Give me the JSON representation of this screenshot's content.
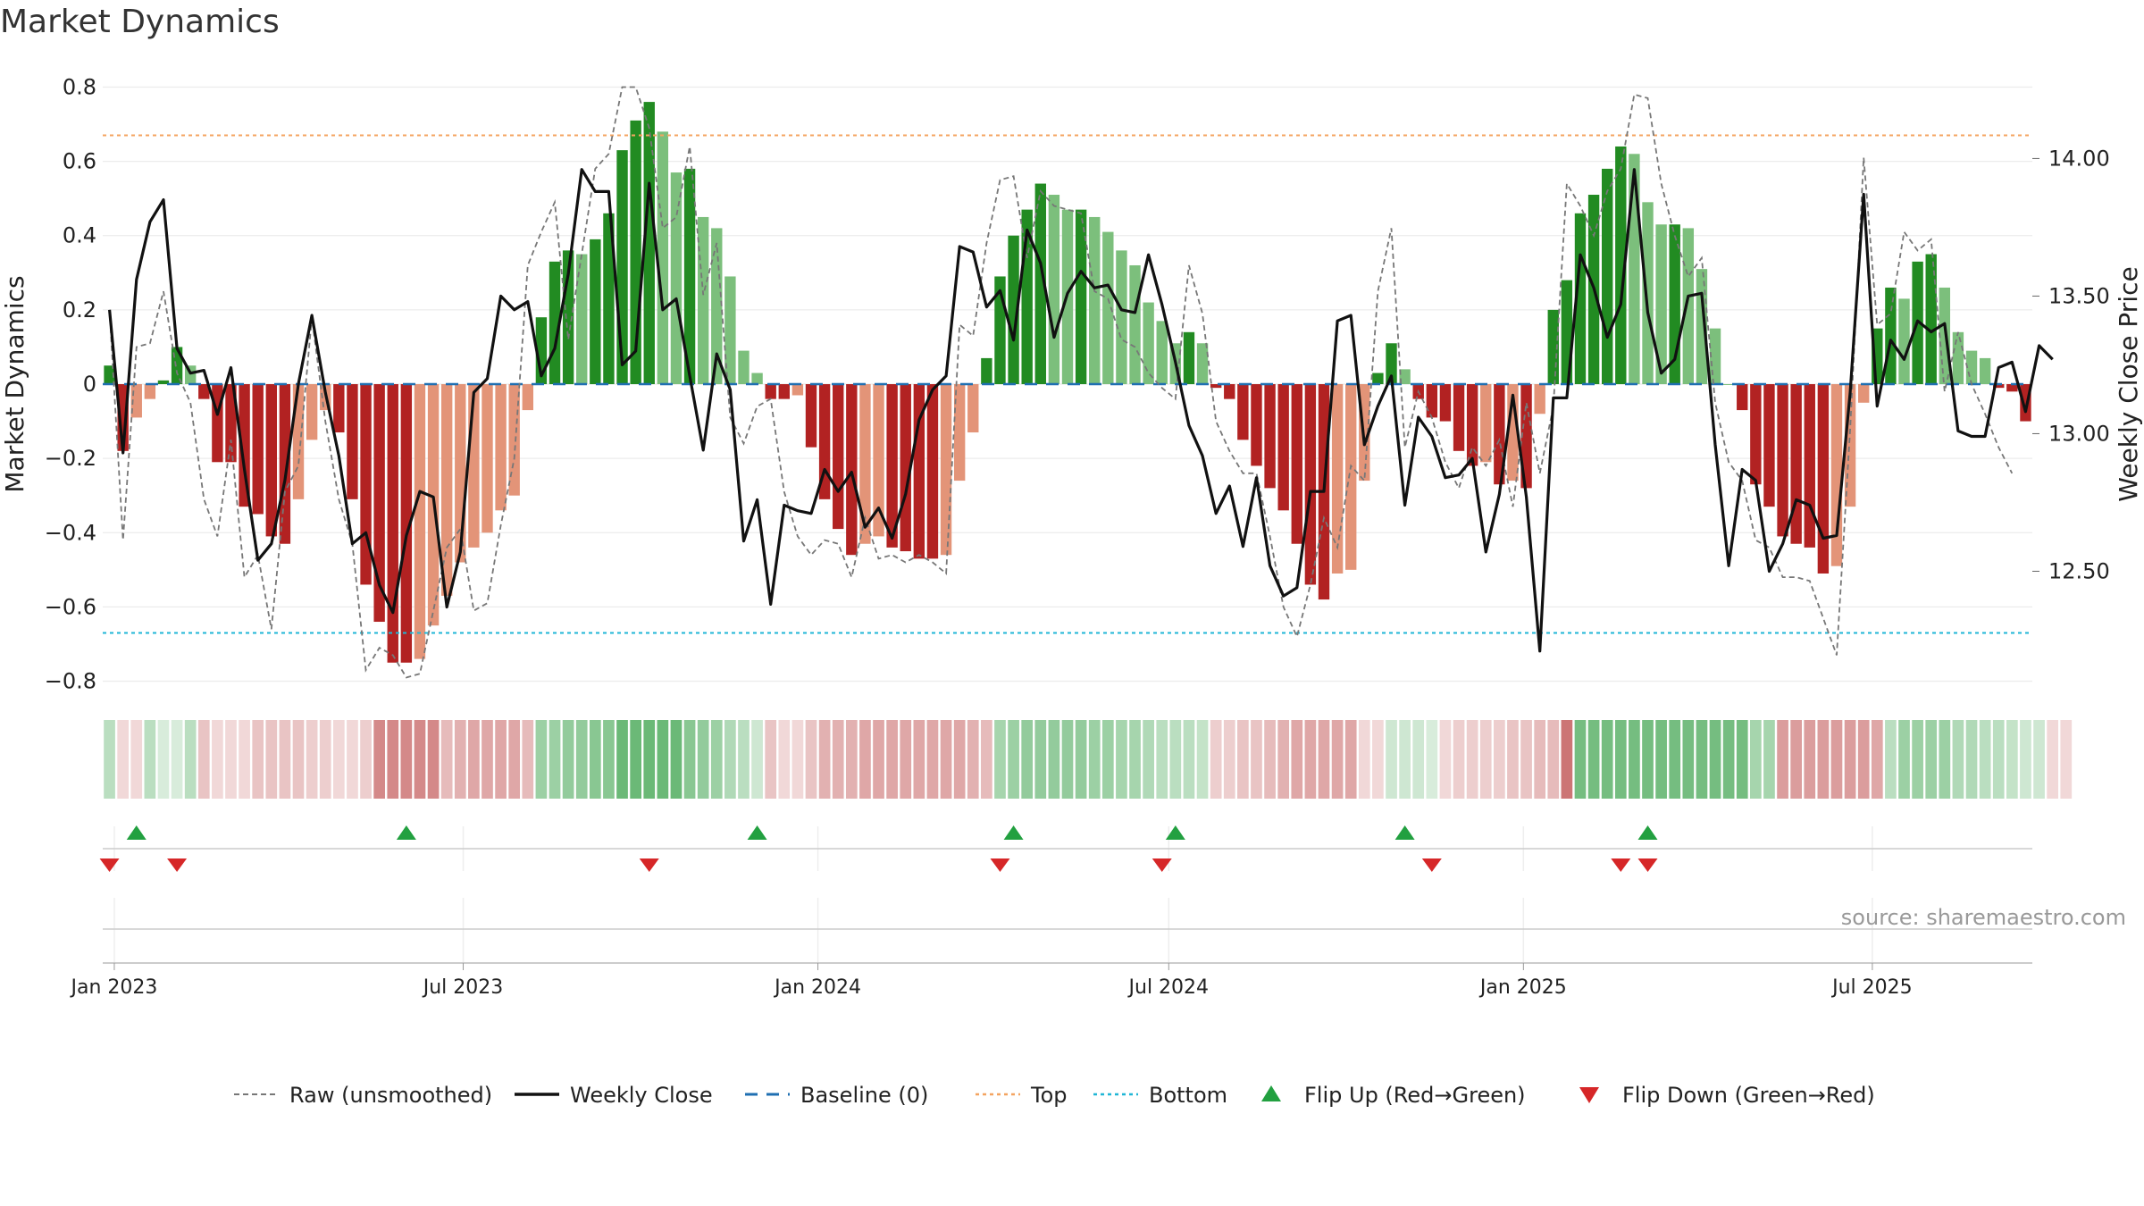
{
  "title": "Market Dynamics",
  "source": "source: sharemaestro.com",
  "chart_data": {
    "type": "bar",
    "ylabel": "Market Dynamics",
    "ylabel_right": "Weekly Close Price",
    "ylim": [
      -0.83,
      0.83
    ],
    "ylim_right": [
      12.06,
      14.3
    ],
    "yticks": [
      "0.8",
      "0.6",
      "0.4",
      "0.2",
      "0",
      "−0.2",
      "−0.4",
      "−0.6",
      "−0.8"
    ],
    "yticks_right": [
      "14.00",
      "13.50",
      "13.00",
      "12.50"
    ],
    "xticks": [
      "Jan 2023",
      "Jul 2023",
      "Jan 2024",
      "Jul 2024",
      "Jan 2025",
      "Jul 2025"
    ],
    "start_date": "2022-12-26",
    "top_level": 0.67,
    "bottom_level": -0.67,
    "bars": [
      0.05,
      -0.18,
      -0.09,
      -0.04,
      0.01,
      0.1,
      0.05,
      -0.04,
      -0.21,
      -0.21,
      -0.33,
      -0.35,
      -0.41,
      -0.43,
      -0.31,
      -0.15,
      -0.07,
      -0.13,
      -0.31,
      -0.54,
      -0.64,
      -0.75,
      -0.75,
      -0.74,
      -0.65,
      -0.57,
      -0.48,
      -0.44,
      -0.4,
      -0.34,
      -0.3,
      -0.07,
      0.18,
      0.33,
      0.36,
      0.35,
      0.39,
      0.46,
      0.63,
      0.71,
      0.76,
      0.68,
      0.57,
      0.58,
      0.45,
      0.42,
      0.29,
      0.09,
      0.03,
      -0.04,
      -0.04,
      -0.03,
      -0.17,
      -0.31,
      -0.39,
      -0.46,
      -0.43,
      -0.41,
      -0.44,
      -0.45,
      -0.47,
      -0.47,
      -0.46,
      -0.26,
      -0.13,
      0.07,
      0.29,
      0.4,
      0.47,
      0.54,
      0.51,
      0.47,
      0.47,
      0.45,
      0.41,
      0.36,
      0.32,
      0.22,
      0.17,
      0.11,
      0.14,
      0.11,
      -0.01,
      -0.04,
      -0.15,
      -0.22,
      -0.28,
      -0.34,
      -0.43,
      -0.54,
      -0.58,
      -0.51,
      -0.5,
      -0.26,
      0.03,
      0.11,
      0.04,
      -0.04,
      -0.09,
      -0.1,
      -0.18,
      -0.22,
      -0.21,
      -0.27,
      -0.26,
      -0.28,
      -0.08,
      0.2,
      0.28,
      0.46,
      0.51,
      0.58,
      0.64,
      0.62,
      0.49,
      0.43,
      0.43,
      0.42,
      0.31,
      0.15,
      0.0,
      -0.07,
      -0.27,
      -0.33,
      -0.41,
      -0.43,
      -0.44,
      -0.51,
      -0.49,
      -0.33,
      -0.05,
      0.15,
      0.26,
      0.23,
      0.33,
      0.35,
      0.26,
      0.14,
      0.09,
      0.07,
      -0.01,
      -0.02,
      -0.1
    ],
    "raw": [
      0.2,
      -0.42,
      0.1,
      0.11,
      0.25,
      0.03,
      -0.05,
      -0.31,
      -0.41,
      -0.15,
      -0.52,
      -0.46,
      -0.66,
      -0.29,
      -0.22,
      0.18,
      -0.1,
      -0.31,
      -0.43,
      -0.77,
      -0.71,
      -0.73,
      -0.79,
      -0.78,
      -0.61,
      -0.44,
      -0.39,
      -0.61,
      -0.59,
      -0.38,
      -0.2,
      0.32,
      0.41,
      0.49,
      0.12,
      0.35,
      0.58,
      0.62,
      0.8,
      0.8,
      0.69,
      0.42,
      0.45,
      0.64,
      0.24,
      0.38,
      -0.09,
      -0.16,
      -0.06,
      -0.04,
      -0.29,
      -0.41,
      -0.46,
      -0.42,
      -0.43,
      -0.52,
      -0.36,
      -0.47,
      -0.46,
      -0.48,
      -0.46,
      -0.48,
      -0.51,
      0.16,
      0.13,
      0.38,
      0.55,
      0.56,
      0.34,
      0.52,
      0.48,
      0.47,
      0.46,
      0.25,
      0.23,
      0.12,
      0.1,
      0.03,
      -0.01,
      -0.04,
      0.32,
      0.19,
      -0.1,
      -0.18,
      -0.24,
      -0.24,
      -0.41,
      -0.6,
      -0.68,
      -0.54,
      -0.36,
      -0.44,
      -0.22,
      -0.26,
      0.25,
      0.42,
      -0.17,
      -0.02,
      -0.09,
      -0.21,
      -0.28,
      -0.17,
      -0.22,
      -0.15,
      -0.33,
      -0.05,
      -0.24,
      -0.06,
      0.54,
      0.48,
      0.4,
      0.52,
      0.58,
      0.78,
      0.77,
      0.54,
      0.4,
      0.29,
      0.34,
      -0.05,
      -0.21,
      -0.26,
      -0.42,
      -0.44,
      -0.52,
      -0.52,
      -0.53,
      -0.63,
      -0.73,
      -0.12,
      0.61,
      0.16,
      0.19,
      0.41,
      0.36,
      0.39,
      -0.02,
      0.14,
      0.0,
      -0.08,
      -0.17,
      -0.24
    ],
    "price": [
      13.45,
      12.93,
      13.56,
      13.77,
      13.85,
      13.31,
      13.22,
      13.23,
      13.07,
      13.24,
      12.87,
      12.54,
      12.6,
      12.83,
      13.18,
      13.43,
      13.15,
      12.92,
      12.6,
      12.64,
      12.45,
      12.35,
      12.63,
      12.79,
      12.77,
      12.37,
      12.57,
      13.15,
      13.2,
      13.5,
      13.45,
      13.48,
      13.21,
      13.31,
      13.58,
      13.96,
      13.88,
      13.88,
      13.25,
      13.3,
      13.91,
      13.45,
      13.49,
      13.21,
      12.94,
      13.29,
      13.16,
      12.61,
      12.76,
      12.38,
      12.74,
      12.72,
      12.71,
      12.87,
      12.79,
      12.86,
      12.66,
      12.73,
      12.62,
      12.78,
      13.05,
      13.16,
      13.21,
      13.68,
      13.66,
      13.46,
      13.52,
      13.34,
      13.74,
      13.62,
      13.35,
      13.51,
      13.59,
      13.53,
      13.54,
      13.45,
      13.44,
      13.65,
      13.47,
      13.26,
      13.03,
      12.92,
      12.71,
      12.81,
      12.59,
      12.84,
      12.52,
      12.41,
      12.44,
      12.79,
      12.79,
      13.41,
      13.43,
      12.96,
      13.1,
      13.21,
      12.74,
      13.06,
      12.99,
      12.84,
      12.85,
      12.91,
      12.57,
      12.78,
      13.14,
      12.77,
      12.21,
      13.13,
      13.13,
      13.65,
      13.53,
      13.35,
      13.47,
      13.96,
      13.44,
      13.22,
      13.27,
      13.5,
      13.51,
      12.96,
      12.52,
      12.87,
      12.83,
      12.5,
      12.6,
      12.76,
      12.74,
      12.62,
      12.63,
      13.15,
      13.87,
      13.1,
      13.34,
      13.27,
      13.41,
      13.37,
      13.4,
      13.01,
      12.99,
      12.99,
      13.24,
      13.26,
      13.08,
      13.32,
      13.27
    ],
    "flip_up_weeks": [
      2,
      22,
      48,
      67,
      79,
      96,
      114
    ],
    "flip_down_weeks": [
      0,
      5,
      40,
      66,
      78,
      98,
      112,
      114
    ],
    "strip_levels": [
      0.35,
      0.2,
      0.2,
      0.35,
      0.2,
      0.2,
      0.35,
      0.3,
      0.2,
      0.2,
      0.2,
      0.3,
      0.3,
      0.3,
      0.3,
      0.25,
      0.25,
      0.2,
      0.2,
      0.25,
      0.6,
      0.6,
      0.6,
      0.6,
      0.6,
      0.35,
      0.4,
      0.45,
      0.45,
      0.45,
      0.45,
      0.35,
      0.5,
      0.5,
      0.55,
      0.55,
      0.6,
      0.6,
      0.75,
      0.75,
      0.75,
      0.75,
      0.75,
      0.6,
      0.55,
      0.5,
      0.4,
      0.35,
      0.25,
      0.3,
      0.2,
      0.2,
      0.3,
      0.4,
      0.4,
      0.4,
      0.45,
      0.45,
      0.45,
      0.45,
      0.45,
      0.45,
      0.45,
      0.45,
      0.4,
      0.35,
      0.45,
      0.5,
      0.55,
      0.55,
      0.55,
      0.55,
      0.55,
      0.5,
      0.5,
      0.45,
      0.45,
      0.4,
      0.35,
      0.35,
      0.35,
      0.3,
      0.25,
      0.25,
      0.3,
      0.3,
      0.35,
      0.4,
      0.45,
      0.45,
      0.45,
      0.45,
      0.45,
      0.2,
      0.2,
      0.25,
      0.25,
      0.25,
      0.2,
      0.2,
      0.25,
      0.25,
      0.25,
      0.25,
      0.3,
      0.3,
      0.35,
      0.35,
      0.7,
      0.7,
      0.7,
      0.7,
      0.7,
      0.7,
      0.7,
      0.7,
      0.7,
      0.7,
      0.7,
      0.7,
      0.7,
      0.7,
      0.45,
      0.45,
      0.5,
      0.5,
      0.5,
      0.5,
      0.5,
      0.5,
      0.5,
      0.45,
      0.35,
      0.5,
      0.5,
      0.5,
      0.5,
      0.4,
      0.4,
      0.35,
      0.35,
      0.3,
      0.25,
      0.25,
      0.2,
      0.2
    ],
    "strip_signs": [
      "g",
      "r",
      "r",
      "g",
      "g",
      "g",
      "g",
      "r",
      "r",
      "r",
      "r",
      "r",
      "r",
      "r",
      "r",
      "r",
      "r",
      "r",
      "r",
      "r",
      "r",
      "r",
      "r",
      "r",
      "r",
      "r",
      "r",
      "r",
      "r",
      "r",
      "r",
      "r",
      "g",
      "g",
      "g",
      "g",
      "g",
      "g",
      "g",
      "g",
      "g",
      "g",
      "g",
      "g",
      "g",
      "g",
      "g",
      "g",
      "g",
      "r",
      "r",
      "r",
      "r",
      "r",
      "r",
      "r",
      "r",
      "r",
      "r",
      "r",
      "r",
      "r",
      "r",
      "r",
      "r",
      "r",
      "g",
      "g",
      "g",
      "g",
      "g",
      "g",
      "g",
      "g",
      "g",
      "g",
      "g",
      "g",
      "g",
      "g",
      "g",
      "g",
      "r",
      "r",
      "r",
      "r",
      "r",
      "r",
      "r",
      "r",
      "r",
      "r",
      "r",
      "r",
      "r",
      "g",
      "g",
      "g",
      "g",
      "r",
      "r",
      "r",
      "r",
      "r",
      "r",
      "r",
      "r",
      "r",
      "r",
      "g",
      "g",
      "g",
      "g",
      "g",
      "g",
      "g",
      "g",
      "g",
      "g",
      "g",
      "g",
      "g",
      "g",
      "g",
      "r",
      "r",
      "r",
      "r",
      "r",
      "r",
      "r",
      "r",
      "g",
      "g",
      "g",
      "g",
      "g",
      "g",
      "g",
      "g",
      "g",
      "g",
      "g",
      "g",
      "r"
    ],
    "legend": [
      {
        "label": "Raw (unsmoothed)",
        "style": "dashed-gray"
      },
      {
        "label": "Weekly Close",
        "style": "solid-black"
      },
      {
        "label": "Baseline (0)",
        "style": "dashed-blue"
      },
      {
        "label": "Top",
        "style": "dotted-orange"
      },
      {
        "label": "Bottom",
        "style": "dotted-cyan"
      },
      {
        "label": "Flip Up (Red→Green)",
        "style": "triangle-up-green"
      },
      {
        "label": "Flip Down (Green→Red)",
        "style": "triangle-down-red"
      }
    ],
    "colors": {
      "strong_green": "#228b22",
      "light_green": "#7cbf7c",
      "strong_red": "#b22222",
      "light_red": "#e39478",
      "raw_line": "#777777",
      "price_line": "#111111",
      "baseline": "#1f6fb2",
      "top": "#f4a460",
      "bottom": "#1fb6d6",
      "flip_up": "#22a040",
      "flip_down": "#d62728",
      "strip_green": "#3aa14a",
      "strip_red": "#b73b3b"
    }
  }
}
